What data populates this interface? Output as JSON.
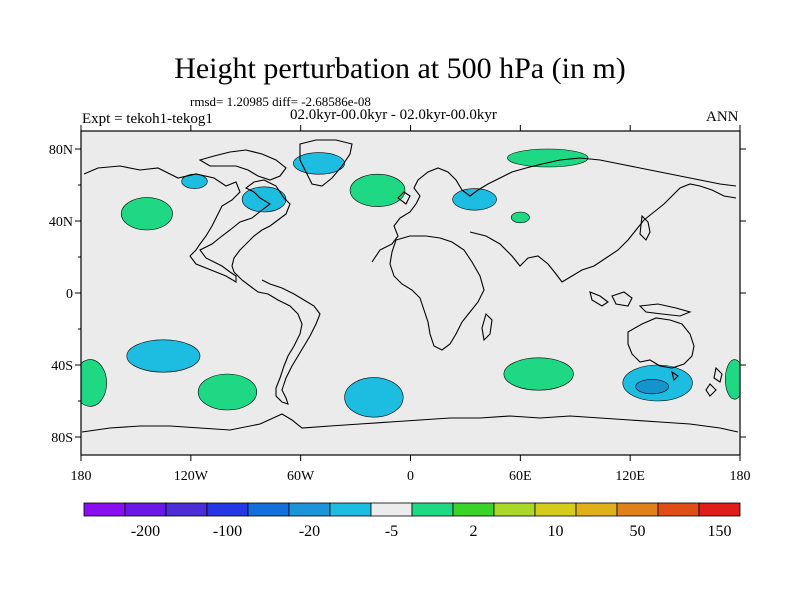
{
  "title": "Height perturbation at 500 hPa (in m)",
  "stats": "rmsd= 1.20985 diff= -2.68586e-08",
  "period": "02.0kyr-00.0kyr - 02.0kyr-00.0kyr",
  "experiment": "Expt = tekoh1-tekog1",
  "season": "ANN",
  "map": {
    "projection": "cylindrical equidistant",
    "ocean_land_background": "#ebebeb",
    "coastline_color": "#000000",
    "lon_range": [
      -180,
      180
    ],
    "lat_range": [
      -90,
      90
    ],
    "lon_ticks": [
      "180",
      "120W",
      "60W",
      "0",
      "60E",
      "120E",
      "180"
    ],
    "lat_ticks": [
      "80N",
      "40N",
      "0",
      "40S",
      "80S"
    ],
    "anomalies": [
      {
        "name": "north-pacific-positive",
        "sign": "positive",
        "color": "#1ed883",
        "lon": -144,
        "lat": 44
      },
      {
        "name": "north-america-negative-west",
        "sign": "negative",
        "color": "#1cbde0",
        "lon": -118,
        "lat": 62
      },
      {
        "name": "labrador-negative",
        "sign": "negative",
        "color": "#1cbde0",
        "lon": -80,
        "lat": 52
      },
      {
        "name": "greenland-negative",
        "sign": "negative",
        "color": "#1cbde0",
        "lon": -50,
        "lat": 72
      },
      {
        "name": "north-atlantic-positive",
        "sign": "positive",
        "color": "#1ed883",
        "lon": -18,
        "lat": 57
      },
      {
        "name": "europe-negative",
        "sign": "negative",
        "color": "#1cbde0",
        "lon": 35,
        "lat": 52
      },
      {
        "name": "siberia-positive",
        "sign": "positive",
        "color": "#1ed883",
        "lon": 75,
        "lat": 75
      },
      {
        "name": "central-asia-positive",
        "sign": "positive",
        "color": "#1ed883",
        "lon": 60,
        "lat": 42
      },
      {
        "name": "south-pacific-negative",
        "sign": "negative",
        "color": "#1cbde0",
        "lon": -135,
        "lat": -35
      },
      {
        "name": "southeast-pacific-positive",
        "sign": "positive",
        "color": "#1ed883",
        "lon": -100,
        "lat": -55
      },
      {
        "name": "south-atlantic-negative",
        "sign": "negative",
        "color": "#1cbde0",
        "lon": -20,
        "lat": -58
      },
      {
        "name": "southern-indian-positive",
        "sign": "positive",
        "color": "#1ed883",
        "lon": 70,
        "lat": -45
      },
      {
        "name": "south-australia-negative",
        "sign": "negative",
        "color": "#1cbde0",
        "lon": 135,
        "lat": -50
      },
      {
        "name": "south-australia-core",
        "sign": "strong-negative",
        "color": "#1493cc",
        "lon": 132,
        "lat": -52
      },
      {
        "name": "dateline-south-positive-west",
        "sign": "positive",
        "color": "#1ed883",
        "lon": -175,
        "lat": -50
      },
      {
        "name": "dateline-south-positive-east",
        "sign": "positive",
        "color": "#1ed883",
        "lon": 177,
        "lat": -48
      }
    ]
  },
  "colorbar": {
    "colors": [
      "#8a0ff0",
      "#6a18e6",
      "#4b2ed6",
      "#2437e2",
      "#136fda",
      "#1c95d8",
      "#1cbde0",
      "#ececec",
      "#1ed883",
      "#3ad327",
      "#a9d82a",
      "#d4cb1c",
      "#e0b01b",
      "#e0801b",
      "#e04e18",
      "#e01d18"
    ],
    "labels": [
      "-200",
      "-100",
      "-20",
      "-5",
      "2",
      "10",
      "50",
      "150"
    ]
  }
}
